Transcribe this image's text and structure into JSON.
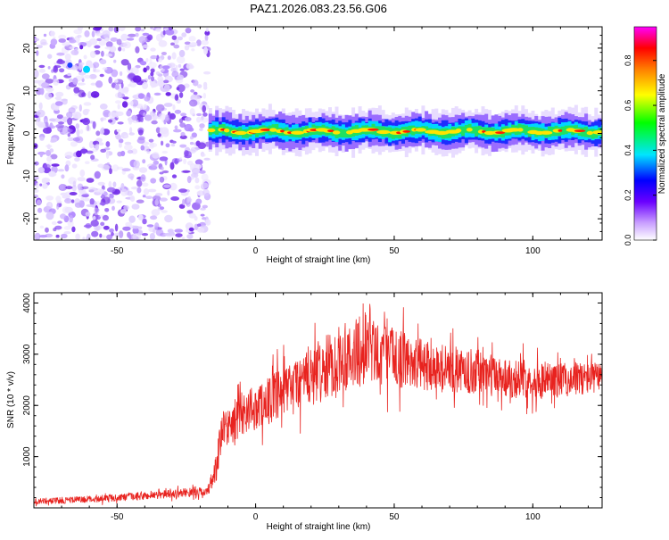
{
  "title": "PAZ1.2026.083.23.56.G06",
  "colors": {
    "snr_line": "#e8231f",
    "axis": "#000000",
    "noise_purple": "#7a3cf0"
  },
  "chart_data": [
    {
      "type": "heatmap",
      "name": "spectrogram",
      "xlabel": "Height of straight line (km)",
      "ylabel": "Frequency (Hz)",
      "xlim": [
        -80,
        125
      ],
      "ylim": [
        -25,
        25
      ],
      "x_ticks": [
        -50,
        0,
        50,
        100
      ],
      "x_tick_labels": [
        "-50",
        "0",
        "50",
        "100"
      ],
      "y_ticks": [
        -20,
        -10,
        0,
        10,
        20
      ],
      "y_tick_labels": [
        "-20",
        "-10",
        "0",
        "10",
        "20"
      ],
      "noise_region_x": [
        -80,
        -17
      ],
      "signal_region_x": [
        -17,
        125
      ],
      "signal_center_freq_hz": 0.5,
      "signal_half_width_hz": 2,
      "colorbar": {
        "label": "Normalized spectral amplitude",
        "range": [
          0,
          0.95
        ],
        "ticks": [
          0.0,
          0.2,
          0.4,
          0.6,
          0.8
        ],
        "tick_labels": [
          "0.0",
          "0.2",
          "0.4",
          "0.6",
          "0.8"
        ],
        "colormap": [
          "#ffffff",
          "#8a2be2",
          "#0000ff",
          "#00ffff",
          "#00ff00",
          "#ffff00",
          "#ff8000",
          "#ff0000",
          "#ff00ff"
        ]
      }
    },
    {
      "type": "line",
      "name": "snr",
      "xlabel": "Height of straight line (km)",
      "ylabel": "SNR (10 * v/v)",
      "xlim": [
        -80,
        125
      ],
      "ylim": [
        0,
        4200
      ],
      "x_ticks": [
        -50,
        0,
        50,
        100
      ],
      "x_tick_labels": [
        "-50",
        "0",
        "50",
        "100"
      ],
      "y_ticks": [
        1000,
        2000,
        3000,
        4000
      ],
      "y_tick_labels": [
        "1000",
        "2000",
        "3000",
        "4000"
      ],
      "trend": {
        "x": [
          -80,
          -60,
          -40,
          -25,
          -17,
          -14,
          -12,
          -5,
          0,
          10,
          20,
          30,
          40,
          50,
          60,
          70,
          80,
          90,
          100,
          110,
          125
        ],
        "y": [
          120,
          170,
          230,
          300,
          320,
          900,
          1500,
          1850,
          1950,
          2250,
          2550,
          2900,
          3100,
          2950,
          2800,
          2700,
          2650,
          2550,
          2500,
          2500,
          2550
        ]
      },
      "noise_amplitude": {
        "x": [
          -80,
          -17,
          -14,
          0,
          20,
          40,
          60,
          125
        ],
        "y": [
          60,
          90,
          350,
          450,
          600,
          700,
          500,
          300
        ]
      }
    }
  ]
}
